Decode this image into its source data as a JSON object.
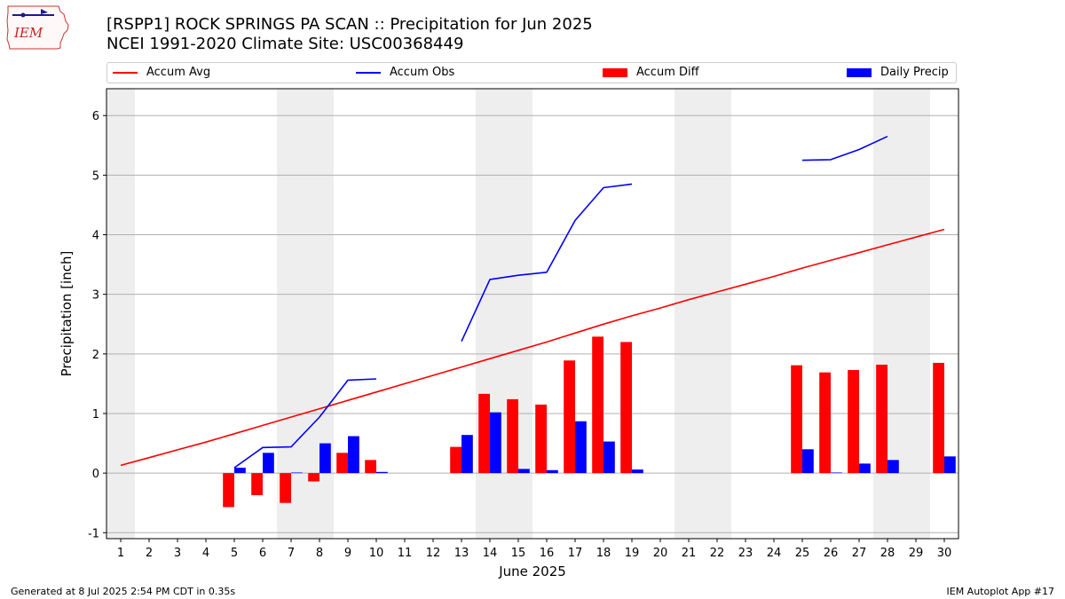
{
  "header": {
    "logo_text": "IEM",
    "title_line1": "[RSPP1] ROCK SPRINGS PA SCAN :: Precipitation for Jun 2025",
    "title_line2": "NCEI 1991-2020 Climate Site: USC00368449"
  },
  "legend": {
    "accum_avg": "Accum Avg",
    "accum_obs": "Accum Obs",
    "accum_diff": "Accum Diff",
    "daily_precip": "Daily Precip"
  },
  "colors": {
    "avg": "#ff0000",
    "obs": "#0000ff",
    "diff": "#ff0000",
    "daily": "#0000ff",
    "weekend_band": "#eeeeee",
    "grid": "#b0b0b0"
  },
  "chart_data": {
    "type": "bar",
    "xlabel": "June 2025",
    "ylabel": "Precipitation [inch]",
    "xlim": [
      0.5,
      30.5
    ],
    "ylim": [
      -1.1,
      6.45
    ],
    "yticks": [
      -1,
      0,
      1,
      2,
      3,
      4,
      5,
      6
    ],
    "xticks": [
      1,
      2,
      3,
      4,
      5,
      6,
      7,
      8,
      9,
      10,
      11,
      12,
      13,
      14,
      15,
      16,
      17,
      18,
      19,
      20,
      21,
      22,
      23,
      24,
      25,
      26,
      27,
      28,
      29,
      30
    ],
    "grid": "horizontal",
    "legend_position": "top",
    "weekend_days": [
      1,
      7,
      8,
      14,
      15,
      21,
      22,
      28,
      29
    ],
    "days": [
      1,
      2,
      3,
      4,
      5,
      6,
      7,
      8,
      9,
      10,
      11,
      12,
      13,
      14,
      15,
      16,
      17,
      18,
      19,
      20,
      21,
      22,
      23,
      24,
      25,
      26,
      27,
      28,
      29,
      30
    ],
    "series": [
      {
        "name": "Accum Avg",
        "kind": "line",
        "values": [
          0.13,
          0.26,
          0.39,
          0.52,
          0.66,
          0.8,
          0.94,
          1.08,
          1.22,
          1.36,
          1.5,
          1.64,
          1.78,
          1.92,
          2.06,
          2.2,
          2.35,
          2.5,
          2.64,
          2.77,
          2.91,
          3.04,
          3.17,
          3.3,
          3.44,
          3.57,
          3.7,
          3.83,
          3.96,
          4.09
        ]
      },
      {
        "name": "Accum Obs",
        "kind": "line",
        "values": [
          null,
          null,
          null,
          null,
          0.09,
          0.43,
          0.44,
          0.94,
          1.56,
          1.58,
          null,
          null,
          2.21,
          3.25,
          3.32,
          3.37,
          4.24,
          4.79,
          4.85,
          null,
          null,
          null,
          null,
          null,
          5.25,
          5.26,
          5.43,
          5.65,
          null,
          null
        ]
      },
      {
        "name": "Accum Diff",
        "kind": "bar",
        "values": [
          null,
          null,
          null,
          null,
          -0.57,
          -0.37,
          -0.5,
          -0.14,
          0.34,
          0.22,
          null,
          null,
          0.44,
          1.33,
          1.24,
          1.15,
          1.89,
          2.29,
          2.2,
          null,
          null,
          null,
          null,
          null,
          1.81,
          1.69,
          1.73,
          1.82,
          null,
          1.85
        ]
      },
      {
        "name": "Daily Precip",
        "kind": "bar",
        "values": [
          null,
          null,
          null,
          null,
          0.09,
          0.34,
          0.01,
          0.5,
          0.62,
          0.02,
          null,
          null,
          0.64,
          1.02,
          0.07,
          0.05,
          0.87,
          0.53,
          0.06,
          null,
          null,
          null,
          null,
          null,
          0.4,
          0.01,
          0.16,
          0.22,
          null,
          0.28
        ]
      }
    ]
  },
  "footer": {
    "left": "Generated at 8 Jul 2025 2:54 PM CDT in 0.35s",
    "right": "IEM Autoplot App #17"
  }
}
